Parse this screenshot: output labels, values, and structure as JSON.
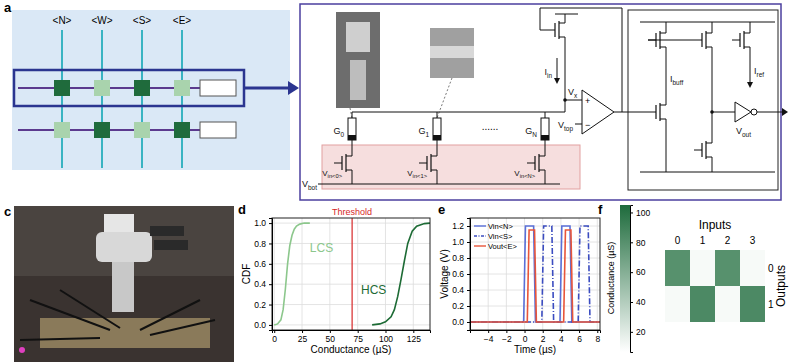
{
  "panel_labels": [
    "a",
    "b",
    "c",
    "d",
    "e",
    "f"
  ],
  "diagram_a": {
    "columns": [
      "<N>",
      "<W>",
      "<S>",
      "<E>"
    ],
    "active": [
      [
        true,
        false,
        true,
        false
      ],
      [
        false,
        true,
        false,
        true
      ]
    ]
  },
  "diagram_b": {
    "conductances": [
      {
        "text": "G",
        "sub": "0"
      },
      {
        "text": "G",
        "sub": "1"
      },
      {
        "text": "G",
        "sub": "N"
      }
    ],
    "ellipsis": "......",
    "inputs": [
      {
        "text": "V",
        "sub": "in<0>"
      },
      {
        "text": "V",
        "sub": "in<1>"
      },
      {
        "text": "V",
        "sub": "in<N>"
      }
    ],
    "v_bot": {
      "text": "V",
      "sub": "bot"
    },
    "i_in": {
      "text": "I",
      "sub": "in"
    },
    "v_x": {
      "text": "V",
      "sub": "x"
    },
    "v_top": {
      "text": "V",
      "sub": "top"
    },
    "comparator": [
      "+",
      "−"
    ],
    "i_buff": {
      "text": "I",
      "sub": "buff"
    },
    "i_ref": {
      "text": "I",
      "sub": "ref"
    },
    "v_out": {
      "text": "V",
      "sub": "out"
    }
  },
  "chart_data": [
    {
      "type": "line",
      "x_label": "Conductance (µS)",
      "y_label": "CDF",
      "xlim": [
        -2,
        140
      ],
      "xticks": [
        0,
        25,
        50,
        75,
        100,
        125
      ],
      "ylim": [
        -0.05,
        1.05
      ],
      "yticks": [
        {
          "value": 0,
          "label": "0.0"
        },
        {
          "value": 0.2,
          "label": "0.2"
        },
        {
          "value": 0.4,
          "label": "0.4"
        },
        {
          "value": 0.6,
          "label": "0.6"
        },
        {
          "value": 0.8,
          "label": "0.8"
        },
        {
          "value": 1,
          "label": "1.0"
        }
      ],
      "grid": true,
      "series": [
        {
          "color": "#8cc78c",
          "x": [
            0,
            3,
            6,
            8,
            10,
            12,
            14,
            16,
            18,
            20,
            23,
            27,
            32
          ],
          "values": [
            0,
            0.01,
            0.05,
            0.15,
            0.35,
            0.6,
            0.78,
            0.88,
            0.94,
            0.97,
            0.99,
            1,
            1
          ]
        },
        {
          "color": "#1d6b35",
          "x": [
            88,
            95,
            100,
            105,
            108,
            111,
            114,
            117,
            120,
            124,
            128,
            135,
            140
          ],
          "values": [
            0,
            0.01,
            0.03,
            0.08,
            0.15,
            0.28,
            0.45,
            0.63,
            0.8,
            0.92,
            0.97,
            0.995,
            1
          ]
        }
      ],
      "annotations": [
        {
          "text": "LCS",
          "x": 32,
          "y": 0.72,
          "color": "#8cc78c"
        },
        {
          "text": "HCS",
          "x": 78,
          "y": 0.3,
          "color": "#1d6b35"
        }
      ],
      "threshold": {
        "value": 70,
        "label": "Threshold",
        "color": "#d62728"
      }
    },
    {
      "type": "line",
      "x_label": "Time (µs)",
      "y_label": "Voltage (V)",
      "xlim": [
        -6,
        8.3
      ],
      "xticks": [
        {
          "value": -4,
          "label": "−4"
        },
        {
          "value": -2,
          "label": "−2"
        },
        0,
        2,
        4,
        6,
        8
      ],
      "ylim": [
        -0.1,
        1.3
      ],
      "yticks": [
        {
          "value": 0,
          "label": "0.0"
        },
        {
          "value": 0.2,
          "label": "0.2"
        },
        {
          "value": 0.4,
          "label": "0.4"
        },
        {
          "value": 0.6,
          "label": "0.6"
        },
        {
          "value": 0.8,
          "label": "0.8"
        },
        {
          "value": 1,
          "label": "1.0"
        },
        {
          "value": 1.2,
          "label": "1.2"
        }
      ],
      "grid": true,
      "legend": "upper left",
      "series": [
        {
          "name": "Vin<N>",
          "color": "#5a6fd8",
          "line_style": "solid",
          "x": [
            -6,
            -0.1,
            0.1,
            1.0,
            1.2,
            3.9,
            4.1,
            5.0,
            5.2,
            8.3
          ],
          "values": [
            0,
            0,
            1.2,
            1.2,
            0,
            0,
            1.2,
            1.2,
            0,
            0
          ]
        },
        {
          "name": "Vin<S>",
          "color": "#3b4cc0",
          "line_style": "dashdot",
          "x": [
            -6,
            1.9,
            2.1,
            3.0,
            3.2,
            5.9,
            6.1,
            7.0,
            7.2,
            8.3
          ],
          "values": [
            0,
            0,
            1.2,
            1.2,
            0,
            0,
            1.2,
            1.2,
            0,
            0
          ]
        },
        {
          "name": "Vout<E>",
          "color": "#e8553a",
          "line_style": "solid",
          "x": [
            -6,
            0.3,
            0.5,
            1.1,
            1.3,
            4.3,
            4.5,
            5.1,
            5.3,
            8.3
          ],
          "values": [
            0,
            0,
            1.15,
            1.15,
            0,
            0,
            1.15,
            1.15,
            0,
            0
          ]
        }
      ]
    },
    {
      "type": "heatmap",
      "x_label": "Inputs",
      "y_label": "Outputs",
      "x_categories": [
        "0",
        "1",
        "2",
        "3"
      ],
      "y_categories": [
        "0",
        "1"
      ],
      "values": [
        [
          80,
          10,
          80,
          10
        ],
        [
          10,
          85,
          10,
          85
        ]
      ],
      "colorbar": {
        "label": "Conductance (µS)",
        "range": [
          6.5,
          105
        ],
        "ticks": [
          20,
          40,
          60,
          80,
          100
        ]
      }
    }
  ]
}
